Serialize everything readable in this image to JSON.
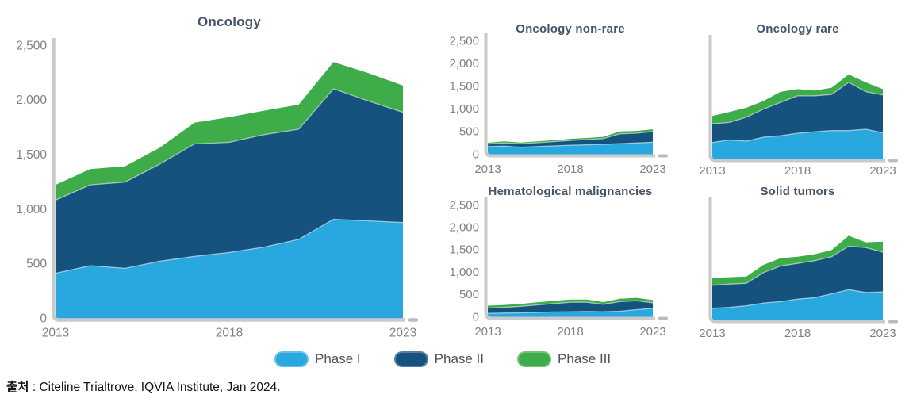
{
  "page": {
    "background": "#FFFFFF"
  },
  "colors": {
    "phase1": "#29A8E0",
    "phase2": "#16527E",
    "phase3": "#3EAD49",
    "axis": "#C9CACC",
    "axis_nub": "#BBBCBE",
    "tick_label": "#7F8285",
    "title": "#44546A",
    "band_separator": "rgba(255,255,255,0.55)"
  },
  "legend": {
    "items": [
      {
        "label": "Phase I",
        "color": "#29A8E0"
      },
      {
        "label": "Phase II",
        "color": "#16527E"
      },
      {
        "label": "Phase III",
        "color": "#3EAD49"
      }
    ]
  },
  "source": {
    "label": "출처",
    "separator": " : ",
    "text": "Citeline Trialtrove, IQVIA Institute, Jan 2024."
  },
  "chart_data": [
    {
      "id": "oncology",
      "type": "area",
      "stacked": true,
      "title": "Oncology",
      "x": [
        2013,
        2014,
        2015,
        2016,
        2017,
        2018,
        2019,
        2020,
        2021,
        2022,
        2023
      ],
      "x_tick_labels": [
        "2013",
        "2018",
        "2023"
      ],
      "ylim": [
        0,
        2500
      ],
      "y_ticks": [
        "0",
        "500",
        "1,000",
        "1,500",
        "2,000",
        "2,500"
      ],
      "y_axis_labels_visible": true,
      "legend_position": "bottom",
      "grid": false,
      "series": [
        {
          "name": "Phase I",
          "values": [
            410,
            480,
            455,
            520,
            565,
            600,
            650,
            720,
            905,
            890,
            875
          ]
        },
        {
          "name": "Phase II",
          "values": [
            670,
            740,
            790,
            890,
            1030,
            1010,
            1030,
            1010,
            1195,
            1100,
            1010
          ]
        },
        {
          "name": "Phase III",
          "values": [
            140,
            145,
            145,
            150,
            195,
            230,
            220,
            225,
            245,
            255,
            245
          ]
        }
      ]
    },
    {
      "id": "oncology-non-rare",
      "type": "area",
      "stacked": true,
      "title": "Oncology non-rare",
      "x": [
        2013,
        2014,
        2015,
        2016,
        2017,
        2018,
        2019,
        2020,
        2021,
        2022,
        2023
      ],
      "x_tick_labels": [
        "2013",
        "2018",
        "2023"
      ],
      "ylim": [
        0,
        2500
      ],
      "y_ticks": [
        "0",
        "500",
        "1,000",
        "1,500",
        "2,000",
        "2,500"
      ],
      "y_axis_labels_visible": true,
      "grid": false,
      "series": [
        {
          "name": "Phase I",
          "values": [
            160,
            170,
            145,
            160,
            175,
            190,
            200,
            210,
            225,
            240,
            255
          ]
        },
        {
          "name": "Phase II",
          "values": [
            55,
            70,
            75,
            85,
            95,
            105,
            115,
            125,
            215,
            215,
            235
          ]
        },
        {
          "name": "Phase III",
          "values": [
            30,
            35,
            30,
            30,
            30,
            35,
            35,
            40,
            55,
            50,
            50
          ]
        }
      ]
    },
    {
      "id": "oncology-rare",
      "type": "area",
      "stacked": true,
      "title": "Oncology rare",
      "x": [
        2013,
        2014,
        2015,
        2016,
        2017,
        2018,
        2019,
        2020,
        2021,
        2022,
        2023
      ],
      "x_tick_labels": [
        "2013",
        "2018",
        "2023"
      ],
      "ylim": [
        0,
        2500
      ],
      "y_ticks": [],
      "y_axis_labels_visible": false,
      "grid": false,
      "series": [
        {
          "name": "Phase I",
          "values": [
            345,
            400,
            375,
            460,
            490,
            545,
            575,
            600,
            600,
            630,
            555
          ]
        },
        {
          "name": "Phase II",
          "values": [
            400,
            375,
            515,
            600,
            715,
            800,
            770,
            775,
            1035,
            805,
            810
          ]
        },
        {
          "name": "Phase III",
          "values": [
            170,
            225,
            200,
            175,
            225,
            145,
            115,
            145,
            170,
            200,
            125
          ]
        }
      ]
    },
    {
      "id": "hematological-malignancies",
      "type": "area",
      "stacked": true,
      "title": "Hematological malignancies",
      "x": [
        2013,
        2014,
        2015,
        2016,
        2017,
        2018,
        2019,
        2020,
        2021,
        2022,
        2023
      ],
      "x_tick_labels": [
        "2013",
        "2018",
        "2023"
      ],
      "ylim": [
        0,
        2500
      ],
      "y_ticks": [
        "0",
        "500",
        "1,000",
        "1,500",
        "2,000",
        "2,500"
      ],
      "y_axis_labels_visible": true,
      "grid": false,
      "series": [
        {
          "name": "Phase I",
          "values": [
            70,
            75,
            80,
            90,
            100,
            105,
            110,
            105,
            115,
            150,
            180
          ]
        },
        {
          "name": "Phase II",
          "values": [
            115,
            125,
            145,
            165,
            185,
            210,
            205,
            165,
            215,
            200,
            125
          ]
        },
        {
          "name": "Phase III",
          "values": [
            55,
            55,
            55,
            60,
            60,
            60,
            60,
            50,
            65,
            65,
            60
          ]
        }
      ]
    },
    {
      "id": "solid-tumors",
      "type": "area",
      "stacked": true,
      "title": "Solid tumors",
      "x": [
        2013,
        2014,
        2015,
        2016,
        2017,
        2018,
        2019,
        2020,
        2021,
        2022,
        2023
      ],
      "x_tick_labels": [
        "2013",
        "2018",
        "2023"
      ],
      "ylim": [
        0,
        2500
      ],
      "y_ticks": [],
      "y_axis_labels_visible": false,
      "grid": false,
      "series": [
        {
          "name": "Phase I",
          "values": [
            245,
            265,
            300,
            360,
            390,
            445,
            475,
            560,
            650,
            590,
            600
          ]
        },
        {
          "name": "Phase II",
          "values": [
            500,
            505,
            490,
            660,
            775,
            775,
            805,
            805,
            945,
            975,
            865
          ]
        },
        {
          "name": "Phase III",
          "values": [
            160,
            150,
            145,
            170,
            170,
            145,
            140,
            145,
            230,
            115,
            230
          ]
        }
      ]
    }
  ]
}
